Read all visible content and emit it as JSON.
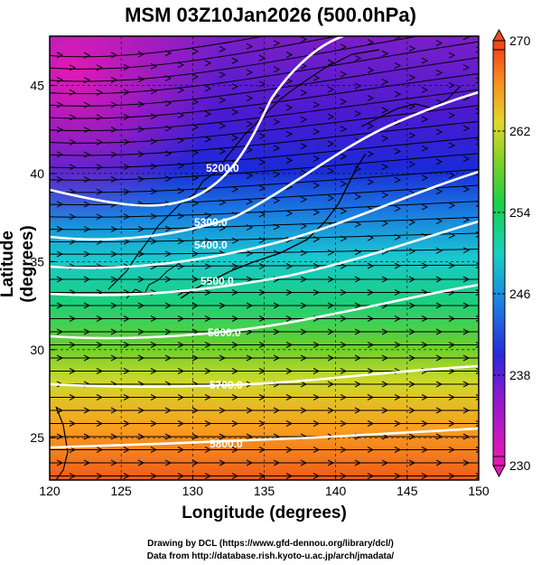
{
  "title": "MSM 03Z10Jan2026 (500.0hPa)",
  "xlabel": "Longitude (degrees)",
  "ylabel": "Latitude  (degrees)",
  "xticks": [
    "120",
    "125",
    "130",
    "135",
    "140",
    "145",
    "150"
  ],
  "yticks": [
    "25",
    "30",
    "35",
    "40",
    "45"
  ],
  "colorbar": {
    "ticks": [
      "270",
      "262",
      "254",
      "246",
      "238",
      "230"
    ],
    "min": 230,
    "max": 270
  },
  "contours": [
    {
      "label": "5200.0"
    },
    {
      "label": "5300.0"
    },
    {
      "label": "5400.0"
    },
    {
      "label": "5500.0"
    },
    {
      "label": "5600.0"
    },
    {
      "label": "5700.0"
    },
    {
      "label": "5800.0"
    }
  ],
  "credits": {
    "line1": "Drawing by DCL (https://www.gfd-dennou.org/library/dcl/)",
    "line2": "Data from http://database.rish.kyoto-u.ac.jp/arch/jmadata/"
  }
}
